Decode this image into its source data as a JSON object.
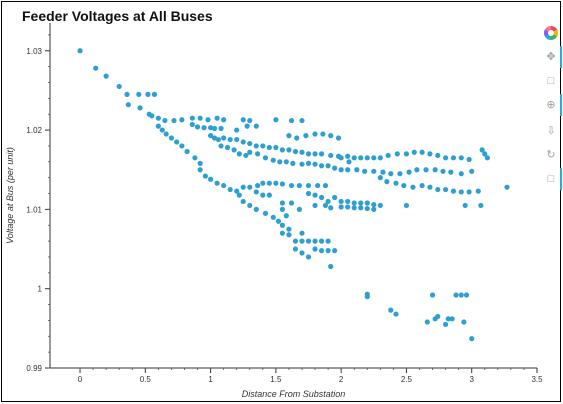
{
  "chart_data": {
    "type": "scatter",
    "title": "Feeder Voltages at All Buses",
    "xlabel": "Distance From Substation",
    "ylabel": "Voltage at Bus (per unit)",
    "xlim": [
      -0.23,
      3.5
    ],
    "ylim": [
      0.99,
      1.0335
    ],
    "x_ticks": [
      0,
      0.5,
      1,
      1.5,
      2,
      2.5,
      3,
      3.5
    ],
    "x_tick_labels": [
      "0",
      "0.5",
      "1",
      "1.5",
      "2",
      "2.5",
      "3",
      "3.5"
    ],
    "y_ticks": [
      0.99,
      1,
      1.01,
      1.02,
      1.03
    ],
    "y_tick_labels": [
      "0.99",
      "1",
      "1.01",
      "1.02",
      "1.03"
    ],
    "grid": false,
    "marker_color": "#2e9fd1",
    "series": [
      {
        "points": [
          [
            0.0,
            1.03
          ],
          [
            0.12,
            1.0278
          ],
          [
            0.2,
            1.0268
          ],
          [
            0.3,
            1.0255
          ],
          [
            0.36,
            1.0245
          ],
          [
            0.37,
            1.0232
          ],
          [
            0.45,
            1.0245
          ],
          [
            0.52,
            1.0245
          ],
          [
            0.57,
            1.0245
          ],
          [
            0.46,
            1.0228
          ],
          [
            0.53,
            1.022
          ],
          [
            0.55,
            1.0218
          ],
          [
            0.6,
            1.0215
          ],
          [
            0.65,
            1.0212
          ],
          [
            0.72,
            1.0212
          ],
          [
            0.78,
            1.0213
          ],
          [
            0.86,
            1.0215
          ],
          [
            0.92,
            1.0215
          ],
          [
            0.98,
            1.0213
          ],
          [
            1.05,
            1.0215
          ],
          [
            1.1,
            1.0213
          ],
          [
            1.25,
            1.0213
          ],
          [
            1.3,
            1.0212
          ],
          [
            1.5,
            1.0213
          ],
          [
            1.62,
            1.0212
          ],
          [
            1.7,
            1.0212
          ],
          [
            0.6,
            1.0205
          ],
          [
            0.63,
            1.02
          ],
          [
            0.66,
            1.0195
          ],
          [
            0.7,
            1.019
          ],
          [
            0.74,
            1.0185
          ],
          [
            0.78,
            1.018
          ],
          [
            0.82,
            1.0173
          ],
          [
            0.88,
            1.0165
          ],
          [
            0.92,
            1.0158
          ],
          [
            0.86,
            1.0207
          ],
          [
            0.9,
            1.0204
          ],
          [
            0.95,
            1.0203
          ],
          [
            1.0,
            1.0203
          ],
          [
            1.03,
            1.0202
          ],
          [
            1.08,
            1.0202
          ],
          [
            1.2,
            1.02
          ],
          [
            1.28,
            1.0205
          ],
          [
            1.35,
            1.0205
          ],
          [
            1.0,
            1.0193
          ],
          [
            1.03,
            1.019
          ],
          [
            1.06,
            1.0188
          ],
          [
            1.1,
            1.019
          ],
          [
            1.15,
            1.0188
          ],
          [
            1.2,
            1.0188
          ],
          [
            1.25,
            1.0185
          ],
          [
            1.3,
            1.0183
          ],
          [
            1.35,
            1.018
          ],
          [
            1.4,
            1.018
          ],
          [
            1.45,
            1.0178
          ],
          [
            1.5,
            1.0178
          ],
          [
            1.55,
            1.0175
          ],
          [
            1.6,
            1.0175
          ],
          [
            1.65,
            1.0173
          ],
          [
            1.7,
            1.0172
          ],
          [
            1.75,
            1.017
          ],
          [
            1.8,
            1.017
          ],
          [
            1.85,
            1.017
          ],
          [
            1.92,
            1.0168
          ],
          [
            1.98,
            1.0167
          ],
          [
            2.05,
            1.0167
          ],
          [
            2.1,
            1.0165
          ],
          [
            2.15,
            1.0165
          ],
          [
            2.2,
            1.0165
          ],
          [
            2.25,
            1.0165
          ],
          [
            2.3,
            1.0165
          ],
          [
            2.36,
            1.0168
          ],
          [
            2.43,
            1.017
          ],
          [
            2.5,
            1.017
          ],
          [
            2.56,
            1.0172
          ],
          [
            2.62,
            1.0172
          ],
          [
            2.68,
            1.017
          ],
          [
            2.74,
            1.0168
          ],
          [
            2.8,
            1.0165
          ],
          [
            2.86,
            1.0165
          ],
          [
            2.92,
            1.0165
          ],
          [
            2.98,
            1.0163
          ],
          [
            1.08,
            1.018
          ],
          [
            1.13,
            1.0178
          ],
          [
            1.18,
            1.0175
          ],
          [
            1.22,
            1.017
          ],
          [
            1.27,
            1.0168
          ],
          [
            1.3,
            1.0172
          ],
          [
            1.36,
            1.017
          ],
          [
            1.42,
            1.0165
          ],
          [
            1.48,
            1.0162
          ],
          [
            1.53,
            1.016
          ],
          [
            1.58,
            1.016
          ],
          [
            1.63,
            1.0158
          ],
          [
            1.7,
            1.0157
          ],
          [
            1.75,
            1.0158
          ],
          [
            1.8,
            1.0157
          ],
          [
            1.85,
            1.0155
          ],
          [
            1.9,
            1.0155
          ],
          [
            1.95,
            1.0152
          ],
          [
            2.0,
            1.015
          ],
          [
            2.05,
            1.015
          ],
          [
            2.12,
            1.015
          ],
          [
            2.18,
            1.0148
          ],
          [
            2.25,
            1.0148
          ],
          [
            2.32,
            1.0147
          ],
          [
            2.38,
            1.0145
          ],
          [
            2.45,
            1.0145
          ],
          [
            2.52,
            1.0147
          ],
          [
            2.58,
            1.015
          ],
          [
            2.65,
            1.015
          ],
          [
            2.72,
            1.015
          ],
          [
            2.78,
            1.0148
          ],
          [
            2.84,
            1.0147
          ],
          [
            2.92,
            1.0145
          ],
          [
            3.0,
            1.0148
          ],
          [
            1.6,
            1.0193
          ],
          [
            1.66,
            1.019
          ],
          [
            1.73,
            1.0193
          ],
          [
            1.8,
            1.0195
          ],
          [
            1.86,
            1.0195
          ],
          [
            1.92,
            1.0193
          ],
          [
            1.98,
            1.019
          ],
          [
            2.0,
            1.0165
          ],
          [
            2.06,
            1.016
          ],
          [
            2.3,
            1.014
          ],
          [
            2.35,
            1.0135
          ],
          [
            2.42,
            1.0133
          ],
          [
            2.48,
            1.013
          ],
          [
            2.55,
            1.0128
          ],
          [
            2.62,
            1.013
          ],
          [
            2.68,
            1.0128
          ],
          [
            2.74,
            1.0125
          ],
          [
            2.8,
            1.0125
          ],
          [
            2.86,
            1.0123
          ],
          [
            2.92,
            1.0122
          ],
          [
            2.98,
            1.0122
          ],
          [
            3.05,
            1.0123
          ],
          [
            3.08,
            1.0175
          ],
          [
            3.1,
            1.017
          ],
          [
            3.12,
            1.0165
          ],
          [
            3.27,
            1.0128
          ],
          [
            3.07,
            1.0105
          ],
          [
            2.95,
            1.0105
          ],
          [
            2.5,
            1.0105
          ],
          [
            0.92,
            1.015
          ],
          [
            0.96,
            1.0142
          ],
          [
            1.0,
            1.0138
          ],
          [
            1.05,
            1.0133
          ],
          [
            1.1,
            1.013
          ],
          [
            1.15,
            1.0125
          ],
          [
            1.2,
            1.0123
          ],
          [
            1.25,
            1.0128
          ],
          [
            1.3,
            1.0128
          ],
          [
            1.36,
            1.013
          ],
          [
            1.4,
            1.0133
          ],
          [
            1.45,
            1.0133
          ],
          [
            1.5,
            1.0133
          ],
          [
            1.55,
            1.0132
          ],
          [
            1.62,
            1.013
          ],
          [
            1.68,
            1.013
          ],
          [
            1.75,
            1.013
          ],
          [
            1.82,
            1.013
          ],
          [
            1.88,
            1.013
          ],
          [
            1.35,
            1.0122
          ],
          [
            1.4,
            1.0118
          ],
          [
            1.45,
            1.0118
          ],
          [
            1.22,
            1.0118
          ],
          [
            1.25,
            1.011
          ],
          [
            1.3,
            1.0105
          ],
          [
            1.35,
            1.01
          ],
          [
            1.42,
            1.0095
          ],
          [
            1.48,
            1.009
          ],
          [
            1.52,
            1.0085
          ],
          [
            1.55,
            1.008
          ],
          [
            1.6,
            1.0075
          ],
          [
            1.55,
            1.0108
          ],
          [
            1.62,
            1.0108
          ],
          [
            1.68,
            1.01
          ],
          [
            1.55,
            1.01
          ],
          [
            1.58,
            1.0092
          ],
          [
            1.75,
            1.012
          ],
          [
            1.8,
            1.0118
          ],
          [
            1.85,
            1.0115
          ],
          [
            1.9,
            1.011
          ],
          [
            1.8,
            1.0105
          ],
          [
            1.88,
            1.0105
          ],
          [
            1.92,
            1.0102
          ],
          [
            1.95,
            1.0115
          ],
          [
            2.0,
            1.011
          ],
          [
            2.05,
            1.011
          ],
          [
            2.1,
            1.0108
          ],
          [
            2.15,
            1.0108
          ],
          [
            2.2,
            1.0108
          ],
          [
            2.25,
            1.0106
          ],
          [
            2.3,
            1.0105
          ],
          [
            2.0,
            1.0103
          ],
          [
            2.05,
            1.0103
          ],
          [
            2.1,
            1.0102
          ],
          [
            2.15,
            1.0102
          ],
          [
            2.2,
            1.0101
          ],
          [
            2.25,
            1.01
          ],
          [
            1.65,
            1.006
          ],
          [
            1.7,
            1.006
          ],
          [
            1.75,
            1.006
          ],
          [
            1.8,
            1.006
          ],
          [
            1.85,
            1.006
          ],
          [
            1.9,
            1.006
          ],
          [
            1.65,
            1.005
          ],
          [
            1.7,
            1.0045
          ],
          [
            1.75,
            1.004
          ],
          [
            1.8,
            1.005
          ],
          [
            1.85,
            1.0048
          ],
          [
            1.9,
            1.0048
          ],
          [
            1.95,
            1.0048
          ],
          [
            1.7,
            1.007
          ],
          [
            1.6,
            1.0068
          ],
          [
            1.55,
            1.007
          ],
          [
            1.92,
            1.0028
          ],
          [
            2.2,
            0.9993
          ],
          [
            2.2,
            0.999
          ],
          [
            2.38,
            0.9973
          ],
          [
            2.42,
            0.9968
          ],
          [
            2.66,
            0.9958
          ],
          [
            2.72,
            0.9962
          ],
          [
            2.74,
            0.9965
          ],
          [
            2.8,
            0.9955
          ],
          [
            2.82,
            0.9962
          ],
          [
            2.85,
            0.9962
          ],
          [
            2.7,
            0.9992
          ],
          [
            2.88,
            0.9992
          ],
          [
            2.92,
            0.9992
          ],
          [
            2.96,
            0.9992
          ],
          [
            2.94,
            0.9958
          ],
          [
            3.0,
            0.9937
          ]
        ]
      }
    ]
  },
  "toolbar": {
    "tools": [
      "bokeh-logo-icon",
      "pan-icon",
      "box-zoom-icon",
      "wheel-zoom-icon",
      "save-icon",
      "reset-icon",
      "hover-icon"
    ]
  }
}
